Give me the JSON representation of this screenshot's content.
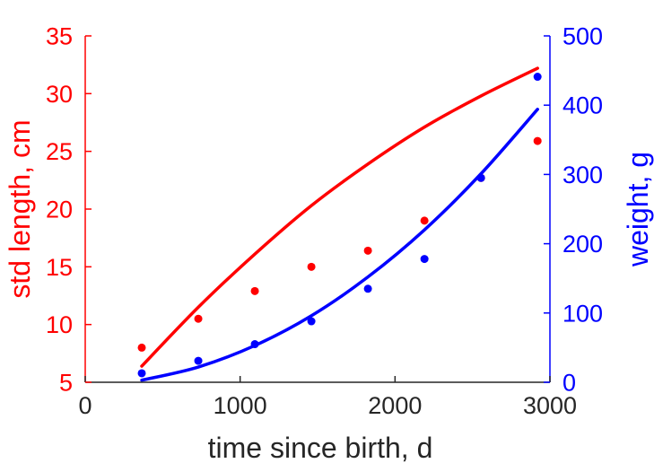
{
  "chart_data": {
    "type": "scatter",
    "title": "",
    "xlabel": "time since birth, d",
    "ylabel": "std length, cm",
    "y2label": "weight, g",
    "xlim": [
      0,
      3000
    ],
    "ylim": [
      5,
      35
    ],
    "y2lim": [
      0,
      500
    ],
    "xticks": [
      0,
      1000,
      2000,
      3000
    ],
    "yticks": [
      5,
      10,
      15,
      20,
      25,
      30,
      35
    ],
    "y2ticks": [
      0,
      100,
      200,
      300,
      400,
      500
    ],
    "xtick_labels": [
      "0",
      "1000",
      "2000",
      "3000"
    ],
    "ytick_labels": [
      "5",
      "10",
      "15",
      "20",
      "25",
      "30",
      "35"
    ],
    "y2tick_labels": [
      "0",
      "100",
      "200",
      "300",
      "400",
      "500"
    ],
    "grid": false,
    "colors": {
      "left": "#ff0000",
      "right": "#0000ff",
      "axis_dark": "#262626"
    },
    "series": [
      {
        "axis": "left",
        "kind": "points",
        "color": "#ff0000",
        "x": [
          365,
          730,
          1095,
          1460,
          1825,
          2190,
          2555,
          2920
        ],
        "y": [
          8.0,
          10.5,
          12.9,
          15.0,
          16.4,
          19.0,
          22.7,
          25.9
        ]
      },
      {
        "axis": "left",
        "kind": "line",
        "color": "#ff0000",
        "x": [
          365,
          730,
          1095,
          1460,
          1825,
          2190,
          2555,
          2920
        ],
        "y": [
          6.4,
          11.5,
          16.1,
          20.3,
          23.9,
          27.1,
          29.8,
          32.2
        ]
      },
      {
        "axis": "right",
        "kind": "points",
        "color": "#0000ff",
        "x": [
          365,
          730,
          1095,
          1460,
          1825,
          2190,
          2555,
          2920
        ],
        "y": [
          13,
          31,
          55,
          88,
          135,
          178,
          295,
          441
        ]
      },
      {
        "axis": "right",
        "kind": "line",
        "color": "#0000ff",
        "x": [
          365,
          730,
          1095,
          1460,
          1825,
          2190,
          2555,
          2920
        ],
        "y": [
          3,
          22,
          53,
          96,
          152,
          220,
          301,
          394
        ]
      }
    ]
  }
}
